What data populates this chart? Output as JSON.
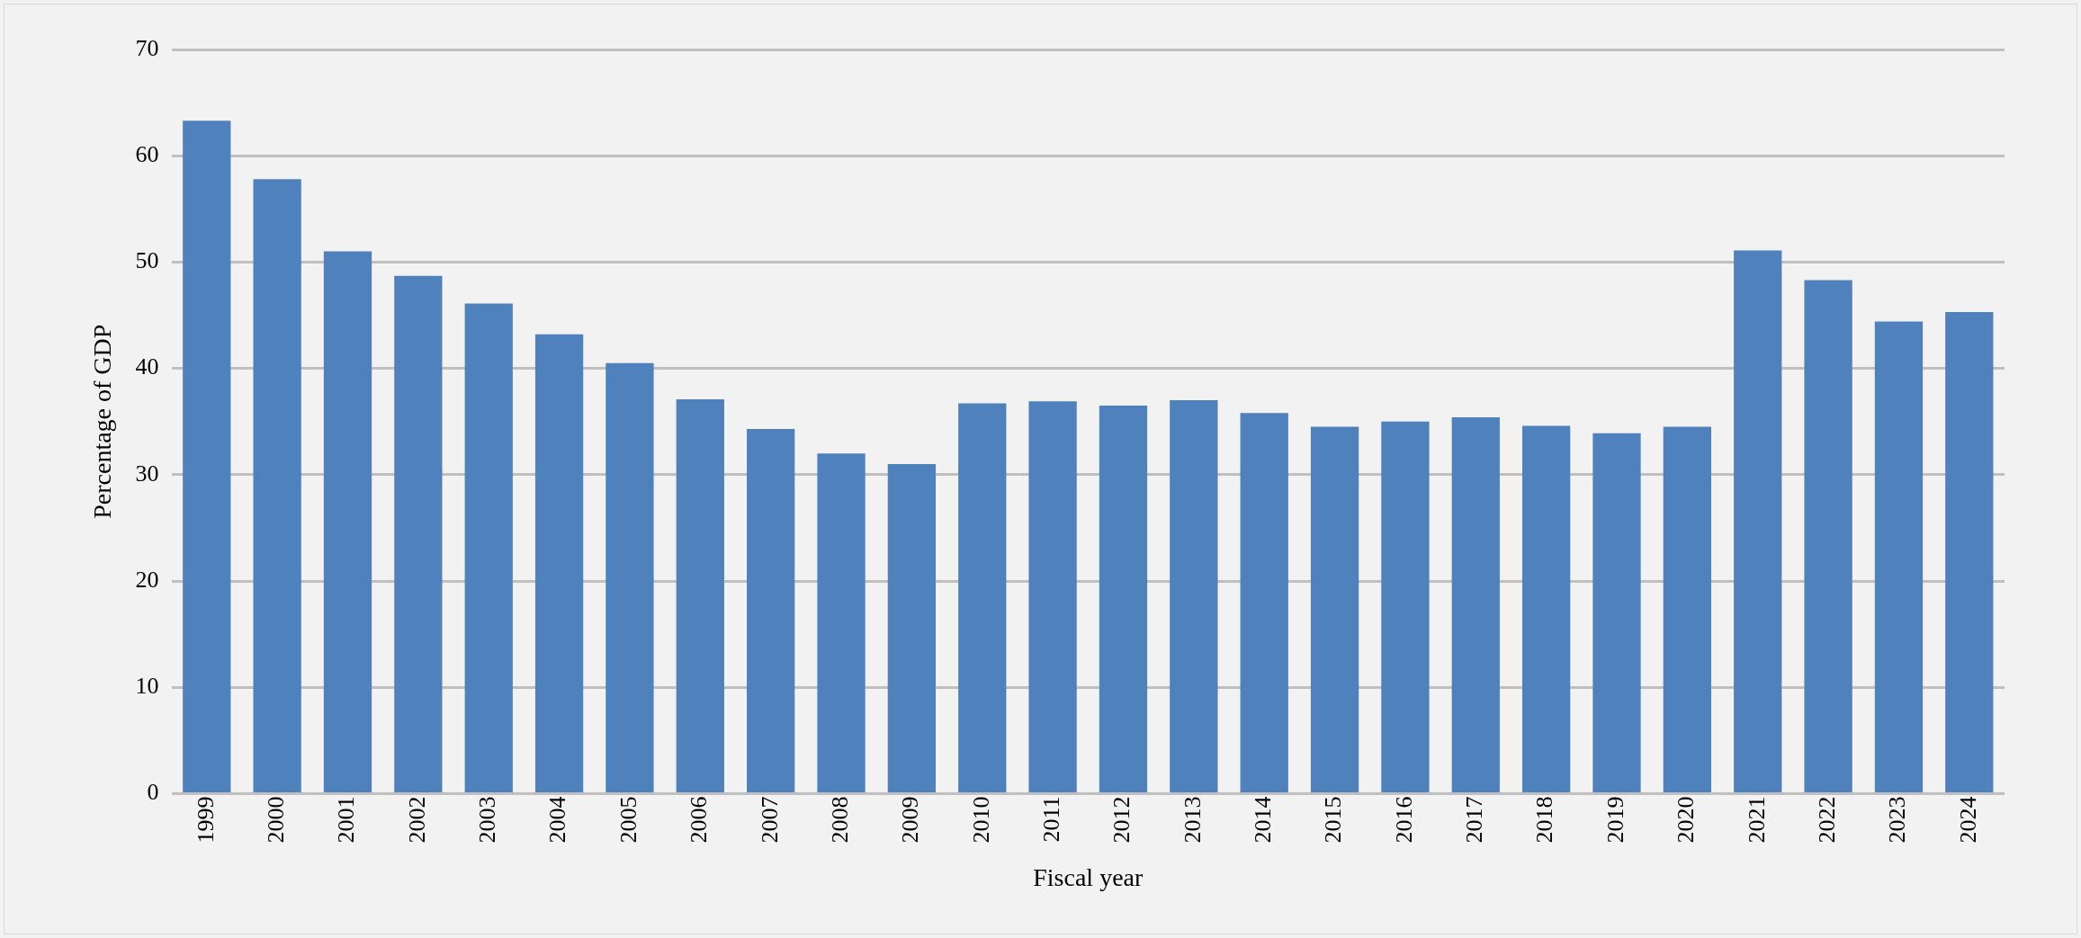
{
  "chart_data": {
    "type": "bar",
    "xlabel": "Fiscal year",
    "ylabel": "Percentage of GDP",
    "categories": [
      "1999",
      "2000",
      "2001",
      "2002",
      "2003",
      "2004",
      "2005",
      "2006",
      "2007",
      "2008",
      "2009",
      "2010",
      "2011",
      "2012",
      "2013",
      "2014",
      "2015",
      "2016",
      "2017",
      "2018",
      "2019",
      "2020",
      "2021",
      "2022",
      "2023",
      "2024"
    ],
    "values": [
      63.3,
      57.8,
      51.0,
      48.7,
      46.1,
      43.2,
      40.5,
      37.1,
      34.3,
      32.0,
      31.0,
      36.7,
      36.9,
      36.5,
      37.0,
      35.8,
      34.5,
      35.0,
      35.4,
      34.6,
      33.9,
      34.5,
      51.1,
      48.3,
      44.4,
      45.3
    ],
    "color": "#4f81bd",
    "ylim": [
      0,
      70
    ],
    "yticks": [
      0,
      10,
      20,
      30,
      40,
      50,
      60,
      70
    ],
    "grid": "y",
    "legend": false
  }
}
